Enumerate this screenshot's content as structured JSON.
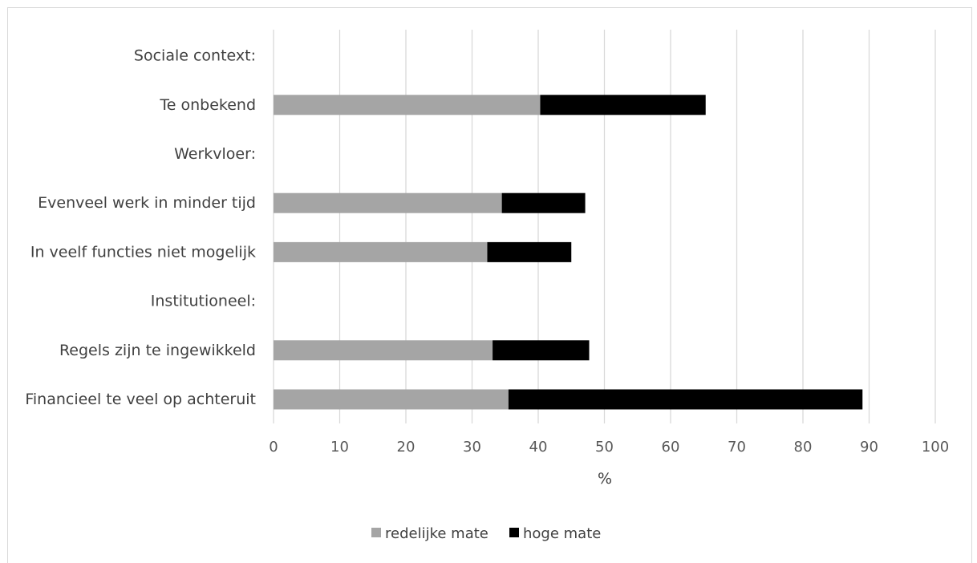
{
  "chart_data": {
    "type": "bar",
    "orientation": "horizontal",
    "stacked": true,
    "categories": [
      "Sociale context:",
      "Te onbekend",
      "Werkvloer:",
      "Evenveel werk in minder tijd",
      "In veelf functies niet mogelijk",
      "Institutioneel:",
      "Regels zijn te ingewikkeld",
      "Financieel te veel op achteruit"
    ],
    "series": [
      {
        "name": "redelijke mate",
        "color": "#a5a5a5",
        "values": [
          null,
          40.3,
          null,
          34.5,
          32.3,
          null,
          33.1,
          35.5
        ]
      },
      {
        "name": "hoge mate",
        "color": "#000000",
        "values": [
          null,
          25.0,
          null,
          12.6,
          12.7,
          null,
          14.6,
          53.5
        ]
      }
    ],
    "xlabel": "%",
    "xlim": [
      0,
      100
    ],
    "xticks": [
      "0",
      "10",
      "20",
      "30",
      "40",
      "50",
      "60",
      "70",
      "80",
      "90",
      "100"
    ],
    "grid": "vertical",
    "legend": "bottom"
  }
}
